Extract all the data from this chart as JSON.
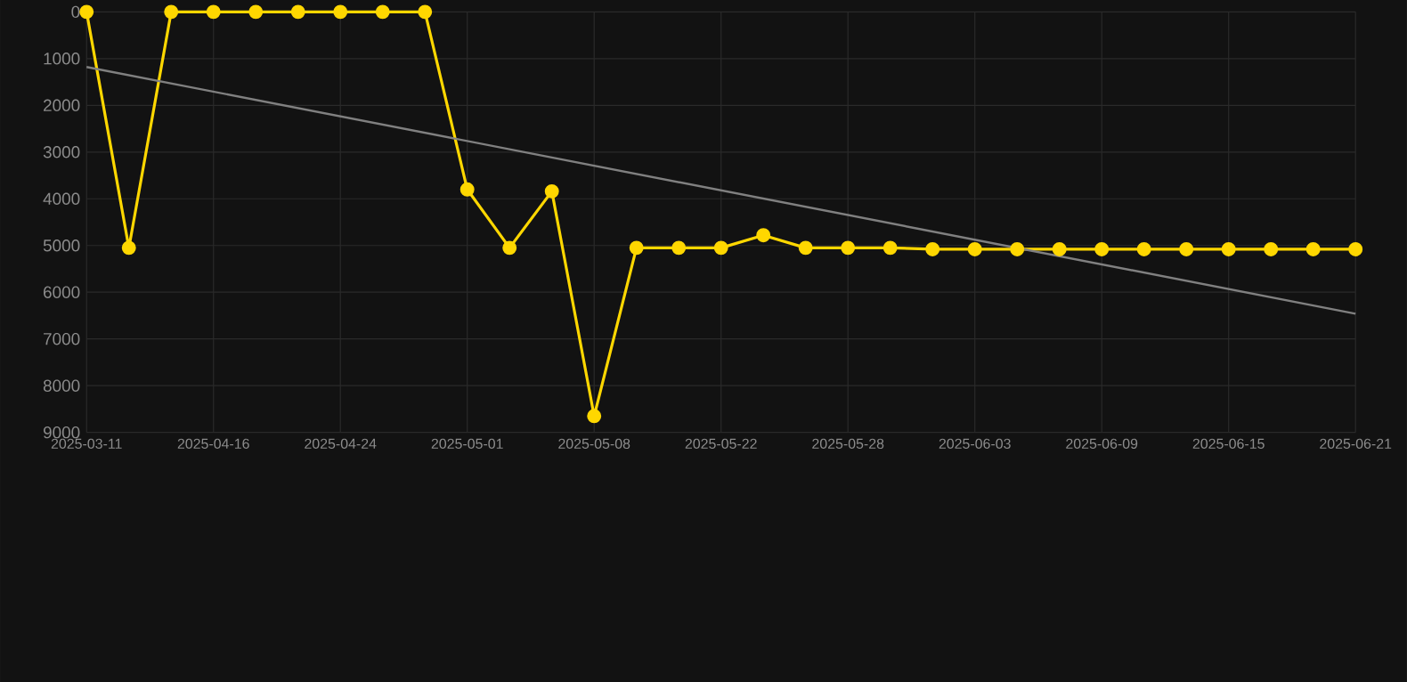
{
  "chart_data": {
    "type": "line",
    "categories": [
      "2025-03-11",
      null,
      null,
      "2025-04-16",
      null,
      null,
      "2025-04-24",
      null,
      null,
      "2025-05-01",
      null,
      null,
      "2025-05-08",
      null,
      null,
      "2025-05-22",
      null,
      null,
      "2025-05-28",
      null,
      null,
      "2025-06-03",
      null,
      null,
      "2025-06-09",
      null,
      null,
      "2025-06-15",
      null,
      null,
      "2025-06-21"
    ],
    "series": [
      {
        "color": "#ffd700",
        "values": [
          0,
          5050,
          0,
          0,
          0,
          0,
          0,
          0,
          0,
          3800,
          5050,
          3840,
          8650,
          5050,
          5050,
          5050,
          4780,
          5050,
          5050,
          5050,
          5080,
          5080,
          5080,
          5080,
          5080,
          5080,
          5080,
          5080,
          5080,
          5080,
          5080
        ]
      },
      {
        "color": "#808080",
        "marker": "none",
        "values": [
          1180,
          null,
          null,
          null,
          null,
          null,
          null,
          null,
          null,
          null,
          null,
          null,
          null,
          null,
          null,
          null,
          null,
          null,
          null,
          null,
          null,
          null,
          null,
          null,
          null,
          null,
          null,
          null,
          null,
          null,
          6460
        ]
      }
    ],
    "ylim": [
      9000,
      0
    ],
    "yticks": [
      0,
      1000,
      2000,
      3000,
      4000,
      5000,
      6000,
      7000,
      8000,
      9000
    ],
    "grid": true,
    "marker": "circle",
    "line_style": "solid"
  }
}
